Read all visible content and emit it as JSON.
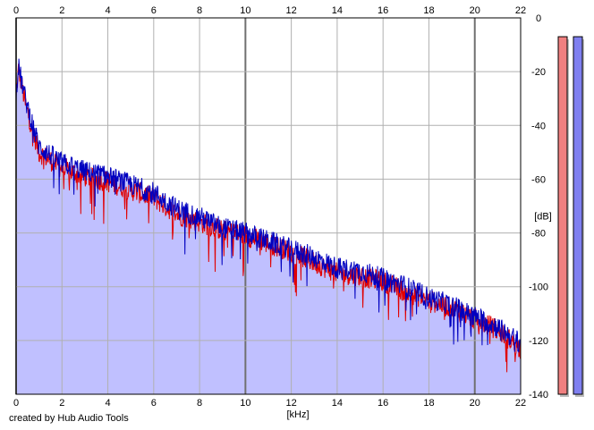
{
  "chart_data": {
    "type": "area",
    "xlabel": "[kHz]",
    "ylabel": "[dB]",
    "xlim": [
      0,
      22
    ],
    "ylim": [
      -140,
      0
    ],
    "x_ticks": [
      "0",
      "2",
      "4",
      "6",
      "8",
      "10",
      "12",
      "14",
      "16",
      "18",
      "20",
      "22"
    ],
    "y_ticks": [
      "0",
      "-20",
      "-40",
      "-60",
      "-80",
      "-100",
      "-120",
      "-140"
    ],
    "grid": true,
    "series": [
      {
        "color": "#e00000",
        "x": [
          0,
          0.1,
          0.2,
          0.4,
          0.8,
          1,
          2,
          3,
          4,
          5,
          6,
          7,
          8,
          9,
          10,
          11,
          12,
          13,
          14,
          15,
          16,
          17,
          18,
          19,
          20,
          21,
          22
        ],
        "values": [
          -30,
          -19,
          -23,
          -32,
          -44,
          -50,
          -56,
          -59,
          -61,
          -64,
          -67,
          -73,
          -76,
          -79,
          -81,
          -84,
          -87,
          -91,
          -95,
          -96,
          -98,
          -102,
          -105,
          -108,
          -112,
          -116,
          -123
        ]
      },
      {
        "color": "#0000c0",
        "x": [
          0,
          0.1,
          0.2,
          0.4,
          0.8,
          1,
          2,
          3,
          4,
          5,
          6,
          7,
          8,
          9,
          10,
          11,
          12,
          13,
          14,
          15,
          16,
          17,
          18,
          19,
          20,
          21,
          22
        ],
        "values": [
          -28,
          -18,
          -22,
          -30,
          -42,
          -48,
          -54,
          -57,
          -59,
          -62,
          -65,
          -71,
          -74,
          -78,
          -80,
          -83,
          -86,
          -89,
          -93,
          -94,
          -97,
          -100,
          -104,
          -107,
          -111,
          -115,
          -121
        ]
      }
    ],
    "level_meters": [
      {
        "color": "#f08080",
        "level": -7
      },
      {
        "color": "#8080f0",
        "level": -7
      }
    ]
  },
  "credit": "created by Hub Audio Tools"
}
